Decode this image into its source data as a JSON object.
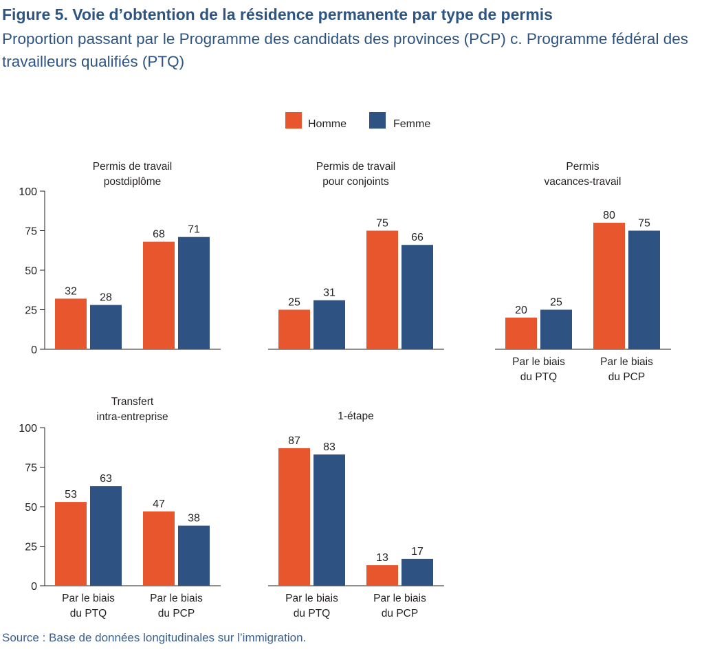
{
  "title": "Figure 5. Voie d’obtention de la résidence permanente par type de permis",
  "subtitle": "Proportion passant par le Programme des candidats des provinces (PCP) c. Programme fédéral des travailleurs qualifiés (PTQ)",
  "source": "Source : Base de données longitudinales sur l’immigration.",
  "colors": {
    "homme": "#e8562d",
    "femme": "#2e5282",
    "axis": "#231f20",
    "text": "#231f20",
    "title": "#2e5482"
  },
  "legend": [
    {
      "label": "Homme",
      "color": "#e8562d"
    },
    {
      "label": "Femme",
      "color": "#2e5282"
    }
  ],
  "chart_data": [
    {
      "type": "bar",
      "title": [
        "Permis de travail",
        "postdiplôme"
      ],
      "categories": [
        [
          "Par le biais",
          "du PTQ"
        ],
        [
          "Par le biais",
          "du PCP"
        ]
      ],
      "show_category_labels": false,
      "ylim": [
        0,
        100
      ],
      "yticks": [
        0,
        25,
        50,
        75,
        100
      ],
      "show_y_axis": true,
      "series": [
        {
          "name": "Homme",
          "values": [
            32,
            68
          ]
        },
        {
          "name": "Femme",
          "values": [
            28,
            71
          ]
        }
      ]
    },
    {
      "type": "bar",
      "title": [
        "Permis de travail",
        "pour conjoints"
      ],
      "categories": [
        [
          "Par le biais",
          "du PTQ"
        ],
        [
          "Par le biais",
          "du PCP"
        ]
      ],
      "show_category_labels": false,
      "ylim": [
        0,
        100
      ],
      "yticks": [
        0,
        25,
        50,
        75,
        100
      ],
      "show_y_axis": false,
      "series": [
        {
          "name": "Homme",
          "values": [
            25,
            75
          ]
        },
        {
          "name": "Femme",
          "values": [
            31,
            66
          ]
        }
      ]
    },
    {
      "type": "bar",
      "title": [
        "Permis",
        "vacances-travail"
      ],
      "categories": [
        [
          "Par le biais",
          "du PTQ"
        ],
        [
          "Par le biais",
          "du PCP"
        ]
      ],
      "show_category_labels": true,
      "ylim": [
        0,
        100
      ],
      "yticks": [
        0,
        25,
        50,
        75,
        100
      ],
      "show_y_axis": false,
      "series": [
        {
          "name": "Homme",
          "values": [
            20,
            80
          ]
        },
        {
          "name": "Femme",
          "values": [
            25,
            75
          ]
        }
      ]
    },
    {
      "type": "bar",
      "title": [
        "Transfert",
        "intra-entreprise"
      ],
      "categories": [
        [
          "Par le biais",
          "du PTQ"
        ],
        [
          "Par le biais",
          "du PCP"
        ]
      ],
      "show_category_labels": true,
      "ylim": [
        0,
        100
      ],
      "yticks": [
        0,
        25,
        50,
        75,
        100
      ],
      "show_y_axis": true,
      "series": [
        {
          "name": "Homme",
          "values": [
            53,
            47
          ]
        },
        {
          "name": "Femme",
          "values": [
            63,
            38
          ]
        }
      ]
    },
    {
      "type": "bar",
      "title": [
        "1-étape"
      ],
      "categories": [
        [
          "Par le biais",
          "du PTQ"
        ],
        [
          "Par le biais",
          "du PCP"
        ]
      ],
      "show_category_labels": true,
      "ylim": [
        0,
        100
      ],
      "yticks": [
        0,
        25,
        50,
        75,
        100
      ],
      "show_y_axis": false,
      "series": [
        {
          "name": "Homme",
          "values": [
            87,
            13
          ]
        },
        {
          "name": "Femme",
          "values": [
            83,
            17
          ]
        }
      ]
    }
  ]
}
